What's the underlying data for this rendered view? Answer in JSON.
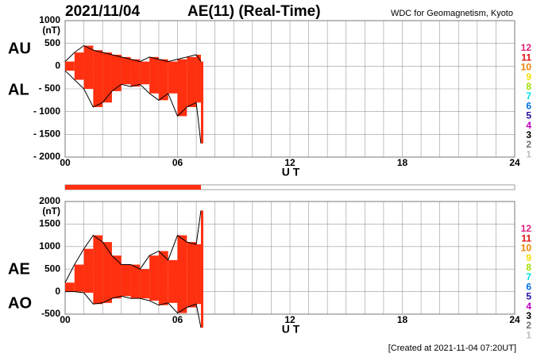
{
  "header": {
    "date": "2021/11/04",
    "title": "AE(11) (Real-Time)",
    "source": "WDC for Geomagnetism, Kyoto",
    "footer": "[Created at 2021-11-04 07:20UT]"
  },
  "chart_data": [
    {
      "type": "range",
      "unit": "(nT)",
      "xlabel": "U T",
      "color": "#ff3010",
      "line_color": "#000000",
      "grid": true,
      "x": [
        0,
        0.5,
        1,
        1.5,
        2,
        2.5,
        3,
        3.5,
        4,
        4.5,
        5,
        5.5,
        6,
        6.5,
        7,
        7.25
      ],
      "series": [
        {
          "name": "AU",
          "values": [
            100,
            300,
            450,
            350,
            300,
            250,
            200,
            150,
            100,
            200,
            150,
            100,
            150,
            200,
            250,
            100
          ]
        },
        {
          "name": "AL",
          "values": [
            -100,
            -300,
            -500,
            -900,
            -800,
            -550,
            -400,
            -450,
            -400,
            -600,
            -750,
            -600,
            -1100,
            -900,
            -800,
            -1700
          ]
        }
      ],
      "xlim": [
        0,
        24
      ],
      "xticks": [
        {
          "value": 0,
          "label": "00"
        },
        {
          "value": 6,
          "label": "06"
        },
        12,
        18,
        24
      ],
      "ylim": [
        -2000,
        1000
      ],
      "yticks": [
        {
          "value": -2000,
          "label": "- 2000"
        },
        {
          "value": -1500,
          "label": "- 1500"
        },
        {
          "value": -1000,
          "label": "- 1000"
        },
        {
          "value": -500,
          "label": "- 500"
        },
        0,
        500,
        1000
      ],
      "legend": [
        {
          "name": "12",
          "color": "#e0207a"
        },
        {
          "name": "11",
          "color": "#e01010"
        },
        {
          "name": "10",
          "color": "#f08000"
        },
        {
          "name": "9",
          "color": "#f0e000"
        },
        {
          "name": "8",
          "color": "#a0e000"
        },
        {
          "name": "7",
          "color": "#00e0e0"
        },
        {
          "name": "6",
          "color": "#0070e0"
        },
        {
          "name": "5",
          "color": "#2010a0"
        },
        {
          "name": "4",
          "color": "#c000c0"
        },
        {
          "name": "3",
          "color": "#000000"
        },
        {
          "name": "2",
          "color": "#707070"
        },
        {
          "name": "1",
          "color": "#c0c0c0"
        }
      ]
    },
    {
      "type": "range",
      "unit": "(nT)",
      "xlabel": "U T",
      "color": "#ff3010",
      "line_color": "#000000",
      "grid": true,
      "x": [
        0,
        0.5,
        1,
        1.5,
        2,
        2.5,
        3,
        3.5,
        4,
        4.5,
        5,
        5.5,
        6,
        6.5,
        7,
        7.25
      ],
      "series": [
        {
          "name": "AE",
          "values": [
            200,
            600,
            950,
            1250,
            1100,
            800,
            600,
            600,
            500,
            800,
            900,
            700,
            1250,
            1100,
            1050,
            1800
          ]
        },
        {
          "name": "AO",
          "values": [
            0,
            0,
            -25,
            -275,
            -250,
            -150,
            -100,
            -150,
            -150,
            -200,
            -300,
            -250,
            -475,
            -350,
            -275,
            -800
          ]
        }
      ],
      "xlim": [
        0,
        24
      ],
      "xticks": [
        {
          "value": 0,
          "label": "00"
        },
        {
          "value": 6,
          "label": "06"
        },
        12,
        18,
        24
      ],
      "ylim": [
        -500,
        2000
      ],
      "yticks": [
        {
          "value": -500,
          "label": "-500"
        },
        0,
        500,
        1000,
        1500,
        2000
      ],
      "legend": [
        {
          "name": "12",
          "color": "#e0207a"
        },
        {
          "name": "11",
          "color": "#e01010"
        },
        {
          "name": "10",
          "color": "#f08000"
        },
        {
          "name": "9",
          "color": "#f0e000"
        },
        {
          "name": "8",
          "color": "#a0e000"
        },
        {
          "name": "7",
          "color": "#00e0e0"
        },
        {
          "name": "6",
          "color": "#0070e0"
        },
        {
          "name": "5",
          "color": "#2010a0"
        },
        {
          "name": "4",
          "color": "#c000c0"
        },
        {
          "name": "3",
          "color": "#000000"
        },
        {
          "name": "2",
          "color": "#707070"
        },
        {
          "name": "1",
          "color": "#c0c0c0"
        }
      ]
    }
  ]
}
